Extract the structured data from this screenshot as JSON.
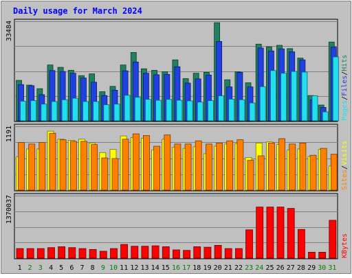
{
  "title": "Daily usage for March 2024",
  "chart_data": [
    {
      "type": "bar",
      "panel": "hits_files_pages",
      "categories": [
        "1",
        "2",
        "3",
        "4",
        "5",
        "6",
        "7",
        "8",
        "9",
        "10",
        "11",
        "12",
        "13",
        "14",
        "15",
        "16",
        "17",
        "18",
        "19",
        "20",
        "21",
        "22",
        "23",
        "24",
        "25",
        "26",
        "27",
        "28",
        "29",
        "30",
        "31"
      ],
      "weekend_days": [
        "2",
        "3",
        "9",
        "10",
        "16",
        "17",
        "23",
        "24",
        "30",
        "31"
      ],
      "y_max_label": "33484",
      "ylim": [
        0,
        33484
      ],
      "series": [
        {
          "name": "Hits",
          "color": "#208060",
          "values": [
            13600,
            12000,
            10800,
            18800,
            18000,
            17000,
            15200,
            15800,
            9800,
            11600,
            18800,
            23000,
            17500,
            17000,
            16500,
            20500,
            14200,
            16000,
            16300,
            33000,
            13800,
            16500,
            12800,
            25800,
            24900,
            25400,
            24300,
            21100,
            8500,
            5300,
            26500
          ]
        },
        {
          "name": "Files",
          "color": "#2040e0",
          "values": [
            12200,
            11800,
            8800,
            16900,
            16600,
            16000,
            14400,
            13000,
            8500,
            10300,
            16800,
            19800,
            16000,
            15500,
            15600,
            18200,
            12700,
            14100,
            15400,
            26700,
            11400,
            16300,
            11400,
            24500,
            23500,
            24200,
            23200,
            20500,
            7100,
            4500,
            24800
          ]
        },
        {
          "name": "Pages",
          "color": "#20e0f0",
          "values": [
            6600,
            6800,
            5600,
            6500,
            7100,
            7600,
            6500,
            6500,
            5400,
            5600,
            8600,
            7900,
            7200,
            6900,
            7200,
            6900,
            6700,
            6300,
            6800,
            8400,
            7300,
            7100,
            6000,
            11500,
            16900,
            16000,
            16600,
            16400,
            8400,
            3000,
            21500
          ]
        }
      ]
    },
    {
      "type": "bar",
      "panel": "visits_sites",
      "categories": [
        "1",
        "2",
        "3",
        "4",
        "5",
        "6",
        "7",
        "8",
        "9",
        "10",
        "11",
        "12",
        "13",
        "14",
        "15",
        "16",
        "17",
        "18",
        "19",
        "20",
        "21",
        "22",
        "23",
        "24",
        "25",
        "26",
        "27",
        "28",
        "29",
        "30",
        "31"
      ],
      "y_max_label": "1191",
      "ylim": [
        0,
        1191
      ],
      "series": [
        {
          "name": "Visits",
          "color": "#ffff00",
          "values": [
            620,
            770,
            770,
            1100,
            950,
            930,
            950,
            880,
            700,
            760,
            1010,
            980,
            970,
            750,
            950,
            800,
            780,
            810,
            680,
            820,
            860,
            870,
            610,
            880,
            900,
            850,
            750,
            770,
            630,
            760,
            450
          ]
        },
        {
          "name": "Sites",
          "color": "#ff8000",
          "values": [
            890,
            860,
            890,
            1060,
            940,
            910,
            910,
            850,
            600,
            590,
            950,
            1050,
            1020,
            820,
            1030,
            860,
            860,
            920,
            860,
            880,
            920,
            940,
            560,
            640,
            880,
            960,
            860,
            880,
            650,
            780,
            670
          ]
        }
      ]
    },
    {
      "type": "bar",
      "panel": "kbytes",
      "categories": [
        "1",
        "2",
        "3",
        "4",
        "5",
        "6",
        "7",
        "8",
        "9",
        "10",
        "11",
        "12",
        "13",
        "14",
        "15",
        "16",
        "17",
        "18",
        "19",
        "20",
        "21",
        "22",
        "23",
        "24",
        "25",
        "26",
        "27",
        "28",
        "29",
        "30",
        "31"
      ],
      "y_max_label": "1370037",
      "ylim": [
        0,
        1370037
      ],
      "series": [
        {
          "name": "KBytes",
          "color": "#ff0000",
          "values": [
            210000,
            210000,
            210000,
            230000,
            250000,
            230000,
            210000,
            190000,
            150000,
            210000,
            300000,
            260000,
            260000,
            270000,
            250000,
            180000,
            170000,
            250000,
            240000,
            280000,
            210000,
            210000,
            620000,
            1120000,
            1120000,
            1120000,
            1090000,
            630000,
            130000,
            130000,
            830000
          ]
        }
      ]
    }
  ]
}
